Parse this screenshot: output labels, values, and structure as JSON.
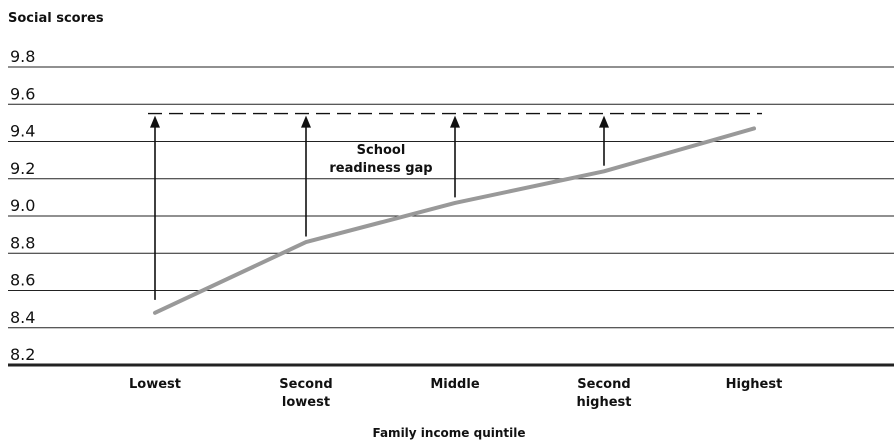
{
  "chart_data": {
    "type": "line",
    "ylabel": "Social scores",
    "xlabel": "Family income quintile",
    "categories": [
      [
        "Lowest"
      ],
      [
        "Second",
        "lowest"
      ],
      [
        "Middle"
      ],
      [
        "Second",
        "highest"
      ],
      [
        "Highest"
      ]
    ],
    "series": [
      {
        "values": [
          8.48,
          8.86,
          9.07,
          9.24,
          9.47
        ],
        "color": "#999999"
      }
    ],
    "reference_line": {
      "value": 9.55,
      "style": "dashed"
    },
    "ylim": [
      8.2,
      9.8
    ],
    "yticks": [
      "9.8",
      "9.6",
      "9.4",
      "9.2",
      "9.0",
      "8.8",
      "8.6",
      "8.4",
      "8.2"
    ],
    "grid": true,
    "annotation": {
      "lines": [
        "School",
        "readiness gap"
      ]
    },
    "gap_arrows": [
      {
        "category_index": 0,
        "from": 8.55
      },
      {
        "category_index": 1,
        "from": 8.89
      },
      {
        "category_index": 2,
        "from": 9.1
      },
      {
        "category_index": 3,
        "from": 9.27
      }
    ]
  }
}
